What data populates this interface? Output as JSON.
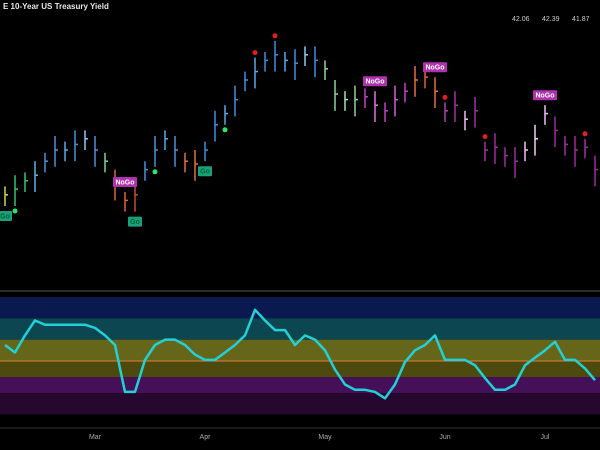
{
  "chart_data": {
    "type": "ohlc",
    "title": "E 10-Year US Treasury Yield",
    "legend_values": [
      42.06,
      42.39,
      41.87
    ],
    "categories": [
      null,
      null,
      null,
      null,
      null,
      null,
      null,
      null,
      null,
      "Mar",
      null,
      null,
      null,
      null,
      null,
      null,
      null,
      null,
      null,
      null,
      "Apr",
      null,
      null,
      null,
      null,
      null,
      null,
      null,
      null,
      null,
      null,
      null,
      "May",
      null,
      null,
      null,
      null,
      null,
      null,
      null,
      null,
      null,
      null,
      null,
      "Jun",
      null,
      null,
      null,
      null,
      null,
      null,
      null,
      null,
      null,
      "Jul",
      null,
      null,
      null,
      null,
      null
    ],
    "ylim": [
      0,
      100
    ],
    "high": [
      37,
      41,
      42,
      46,
      49,
      55,
      53,
      57,
      57,
      55,
      49,
      43,
      35,
      39,
      46,
      55,
      57,
      55,
      49,
      50,
      53,
      64,
      66,
      73,
      78,
      83,
      85,
      89,
      85,
      86,
      87,
      87,
      82,
      75,
      71,
      73,
      72,
      71,
      67,
      73,
      74,
      80,
      79,
      76,
      67,
      71,
      64,
      69,
      53,
      56,
      51,
      51,
      53,
      59,
      66,
      62,
      55,
      55,
      54,
      48
    ],
    "low": [
      30,
      30,
      35,
      35,
      42,
      44,
      46,
      46,
      50,
      44,
      42,
      32,
      28,
      28,
      39,
      44,
      50,
      44,
      42,
      39,
      46,
      53,
      59,
      62,
      71,
      72,
      78,
      78,
      78,
      75,
      80,
      76,
      75,
      64,
      64,
      62,
      65,
      60,
      60,
      62,
      67,
      69,
      72,
      65,
      60,
      60,
      57,
      58,
      46,
      45,
      44,
      40,
      46,
      48,
      59,
      51,
      48,
      44,
      47,
      37
    ],
    "close": [
      34,
      36,
      39,
      41,
      46,
      50,
      50,
      52,
      54,
      50,
      46,
      38,
      32,
      34,
      43,
      50,
      54,
      50,
      46,
      45,
      50,
      59,
      63,
      68,
      75,
      78,
      82,
      84,
      82,
      81,
      84,
      82,
      79,
      70,
      68,
      68,
      69,
      66,
      64,
      68,
      71,
      75,
      76,
      71,
      64,
      66,
      61,
      64,
      50,
      51,
      48,
      46,
      50,
      54,
      63,
      57,
      52,
      50,
      51,
      43
    ],
    "colors": [
      "#c8d84a",
      "#38c070",
      "#38c070",
      "#5fb0e0",
      "#4a90d9",
      "#4a90d9",
      "#5aa8e8",
      "#4a90d9",
      "#8ec8f0",
      "#4a90d9",
      "#7fd0a0",
      "#e0603a",
      "#e0603a",
      "#c05030",
      "#4a90d9",
      "#4a90d9",
      "#5aa8e8",
      "#4a90d9",
      "#e07040",
      "#e07040",
      "#3d8fe0",
      "#3d8fe0",
      "#5aa8e8",
      "#3d8fe0",
      "#3d8fe0",
      "#5aa8e8",
      "#3d8fe0",
      "#3d8fe0",
      "#5aa8e8",
      "#3d8fe0",
      "#8ec8f0",
      "#3d8fe0",
      "#8fd19e",
      "#8fd19e",
      "#a8e0b0",
      "#8fd19e",
      "#c040c0",
      "#e070e0",
      "#c040c0",
      "#d060d0",
      "#c040c0",
      "#e07040",
      "#e0603a",
      "#e07040",
      "#b040b0",
      "#a030a0",
      "#f0c0f0",
      "#a030a0",
      "#a030a0",
      "#9a2a9a",
      "#a030a0",
      "#9a2a9a",
      "#f0c0f0",
      "#f0d0f0",
      "#f0c0f0",
      "#9a2a9a",
      "#a030a0",
      "#9a2a9a",
      "#a030a0",
      "#9a2a9a"
    ],
    "annotations": [
      {
        "text": "Go",
        "at": 0,
        "position": "below",
        "color": "#1aa080"
      },
      {
        "text": "NoGo",
        "at": 12,
        "position": "above",
        "color": "#b030b0"
      },
      {
        "text": "Go",
        "at": 13,
        "position": "below",
        "color": "#1aa080"
      },
      {
        "text": "Go",
        "at": 20,
        "position": "below",
        "color": "#1aa080"
      },
      {
        "text": "NoGo",
        "at": 37,
        "position": "above",
        "color": "#b030b0"
      },
      {
        "text": "NoGo",
        "at": 43,
        "position": "above",
        "color": "#b030b0"
      },
      {
        "text": "NoGo",
        "at": 54,
        "position": "above",
        "color": "#b030b0"
      }
    ],
    "signals": [
      {
        "at": 1,
        "position": "below",
        "color": "#30e070"
      },
      {
        "at": 15,
        "position": "below",
        "color": "#30e070"
      },
      {
        "at": 22,
        "position": "below",
        "color": "#30e070"
      },
      {
        "at": 25,
        "position": "above",
        "color": "#e02020"
      },
      {
        "at": 27,
        "position": "above",
        "color": "#e02020"
      },
      {
        "at": 44,
        "position": "above",
        "color": "#e02020"
      },
      {
        "at": 48,
        "position": "above",
        "color": "#e02020"
      },
      {
        "at": 58,
        "position": "above",
        "color": "#e02020"
      }
    ],
    "oscillator": {
      "ylim": [
        -6,
        6
      ],
      "color": "#22d0d8",
      "zero_color": "#e08030",
      "bands": [
        {
          "from": 4,
          "to": 6,
          "color": "#0a1a50"
        },
        {
          "from": 2,
          "to": 4,
          "color": "#0c4650"
        },
        {
          "from": 0,
          "to": 2,
          "color": "#66661a"
        },
        {
          "from": -1.5,
          "to": 0,
          "color": "#4e4a0e"
        },
        {
          "from": -3,
          "to": -1.5,
          "color": "#451058"
        },
        {
          "from": -5,
          "to": -3,
          "color": "#26082f"
        }
      ],
      "values": [
        1.5,
        0.8,
        2.4,
        3.8,
        3.4,
        3.4,
        3.4,
        3.4,
        3.4,
        3.1,
        2.4,
        1.5,
        -2.9,
        -2.9,
        0.1,
        1.5,
        2.0,
        2.0,
        1.5,
        0.6,
        0.1,
        0.1,
        0.8,
        1.5,
        2.4,
        4.8,
        3.8,
        2.9,
        2.9,
        1.5,
        2.4,
        2.0,
        1.0,
        -0.8,
        -2.2,
        -2.7,
        -2.7,
        -2.9,
        -3.5,
        -2.2,
        -0.1,
        1.0,
        1.5,
        2.4,
        0.1,
        0.1,
        0.1,
        -0.4,
        -1.6,
        -2.7,
        -2.7,
        -2.2,
        -0.4,
        0.3,
        1.0,
        1.8,
        0.1,
        0.1,
        -0.7,
        -1.8
      ]
    }
  }
}
